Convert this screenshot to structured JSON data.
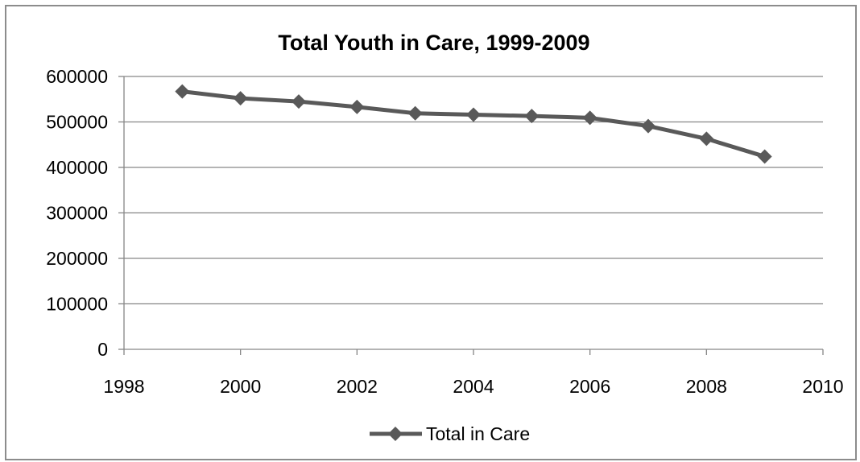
{
  "chart_data": {
    "type": "line",
    "title": "Total Youth in Care, 1999-2009",
    "xlabel": "",
    "ylabel": "",
    "xlim": [
      1998,
      2010
    ],
    "ylim": [
      0,
      600000
    ],
    "xticks": [
      1998,
      2000,
      2002,
      2004,
      2006,
      2008,
      2010
    ],
    "yticks": [
      0,
      100000,
      200000,
      300000,
      400000,
      500000,
      600000
    ],
    "grid": "horizontal",
    "legend_position": "bottom",
    "series": [
      {
        "name": "Total in Care",
        "color": "#595959",
        "marker": "diamond",
        "x": [
          1999,
          2000,
          2001,
          2002,
          2003,
          2004,
          2005,
          2006,
          2007,
          2008,
          2009
        ],
        "y": [
          567000,
          552000,
          545000,
          533000,
          519000,
          516000,
          513000,
          509000,
          491000,
          463000,
          424000
        ]
      }
    ]
  },
  "colors": {
    "gridline": "#868686",
    "axis": "#868686",
    "series_line": "#595959",
    "frame_border": "#8c8c8c"
  }
}
